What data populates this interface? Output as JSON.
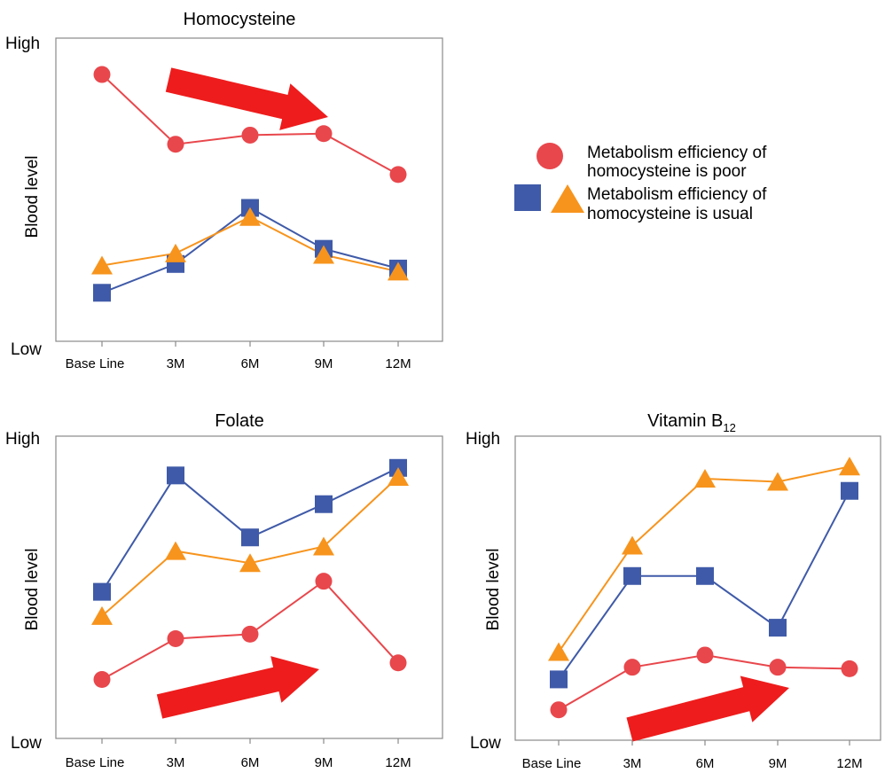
{
  "legend": {
    "poor_line1": "Metabolism efficiency of",
    "poor_line2": "homocysteine is poor",
    "usual_line1": "Metabolism efficiency of",
    "usual_line2": "homocysteine is usual"
  },
  "colors": {
    "poor": "#e8474c",
    "usual_square": "#3f5aa8",
    "usual_triangle": "#f7941d",
    "arrow": "#ee1c1c"
  },
  "chart_data": [
    {
      "id": "homocysteine",
      "type": "line",
      "title": "Homocysteine",
      "title_sub": "",
      "ylabel": "Blood level",
      "y_high": "High",
      "y_low": "Low",
      "categories": [
        "Base Line",
        "3M",
        "6M",
        "9M",
        "12M"
      ],
      "ylim": [
        0,
        100
      ],
      "grid": false,
      "trend_arrow": "down",
      "series": [
        {
          "marker": "circle",
          "color": "#e8474c",
          "values": [
            88,
            65,
            68,
            68.5,
            55
          ]
        },
        {
          "marker": "square",
          "color": "#3f5aa8",
          "values": [
            16,
            25.5,
            44,
            30.5,
            24
          ]
        },
        {
          "marker": "triangle",
          "color": "#f7941d",
          "values": [
            25,
            29,
            41,
            28.5,
            23
          ]
        }
      ]
    },
    {
      "id": "folate",
      "type": "line",
      "title": "Folate",
      "title_sub": "",
      "ylabel": "Blood level",
      "y_high": "High",
      "y_low": "Low",
      "categories": [
        "Base Line",
        "3M",
        "6M",
        "9M",
        "12M"
      ],
      "ylim": [
        0,
        100
      ],
      "grid": false,
      "trend_arrow": "up",
      "series": [
        {
          "marker": "square",
          "color": "#3f5aa8",
          "values": [
            48.5,
            87,
            66.5,
            77.5,
            89.5
          ]
        },
        {
          "marker": "triangle",
          "color": "#f7941d",
          "values": [
            40.5,
            62,
            58,
            63.5,
            86.5
          ]
        },
        {
          "marker": "circle",
          "color": "#e8474c",
          "values": [
            19.5,
            33,
            34.5,
            52,
            25
          ]
        }
      ]
    },
    {
      "id": "vitamin-b12",
      "type": "line",
      "title": "Vitamin B",
      "title_sub": "12",
      "ylabel": "Blood level",
      "y_high": "High",
      "y_low": "Low",
      "categories": [
        "Base Line",
        "3M",
        "6M",
        "9M",
        "12M"
      ],
      "ylim": [
        0,
        100
      ],
      "grid": false,
      "trend_arrow": "up",
      "series": [
        {
          "marker": "triangle",
          "color": "#f7941d",
          "values": [
            29,
            64,
            86,
            85,
            90
          ]
        },
        {
          "marker": "square",
          "color": "#3f5aa8",
          "values": [
            20,
            54,
            54,
            37,
            82
          ]
        },
        {
          "marker": "circle",
          "color": "#e8474c",
          "values": [
            10,
            24,
            28,
            24,
            23.5
          ]
        }
      ]
    }
  ]
}
